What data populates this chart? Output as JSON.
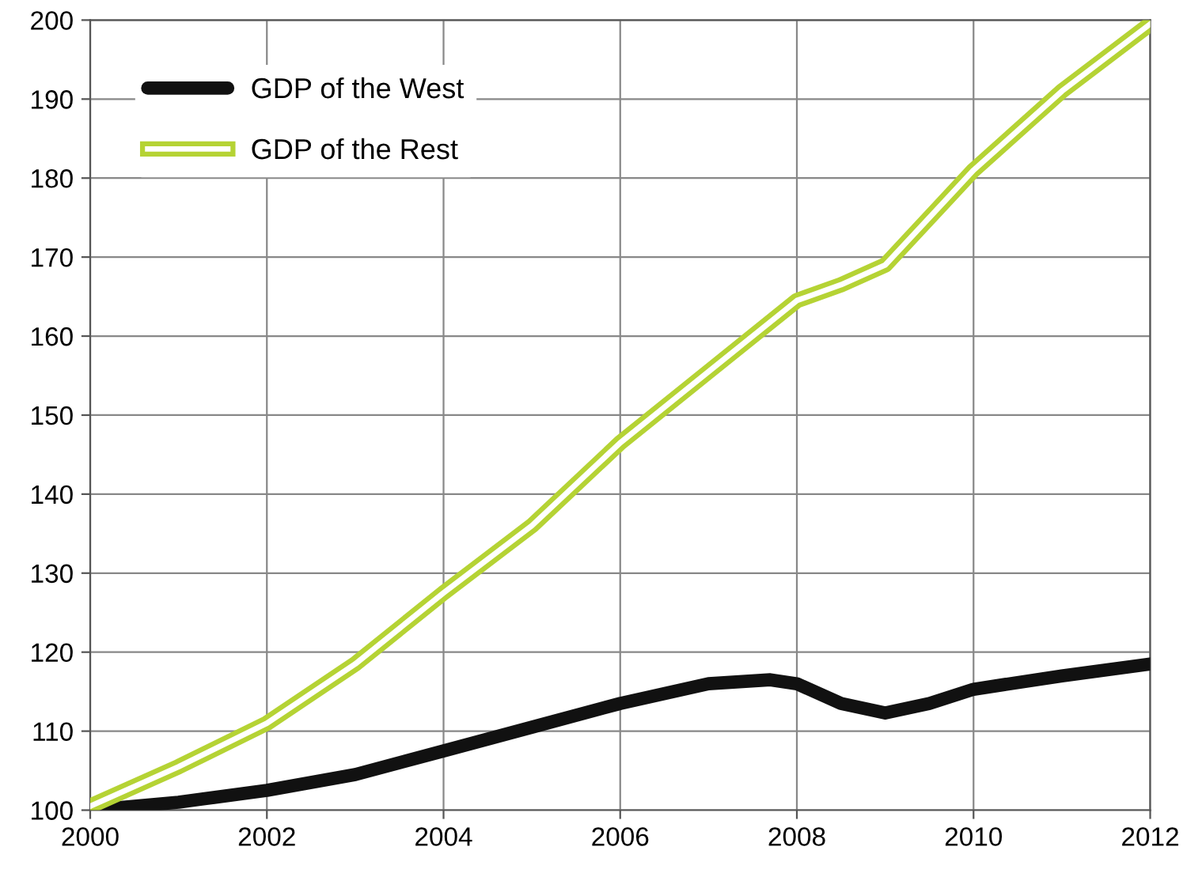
{
  "chart_data": {
    "type": "line",
    "xlim": [
      2000,
      2012
    ],
    "xticks": [
      2000,
      2002,
      2004,
      2006,
      2008,
      2010,
      2012
    ],
    "ylim": [
      100,
      200
    ],
    "yticks": [
      100,
      110,
      120,
      130,
      140,
      150,
      160,
      170,
      180,
      190,
      200
    ],
    "grid": true,
    "legend": "top left",
    "marker": "none",
    "line_style": "solid",
    "series": [
      {
        "name": "GDP of the West",
        "color": "#111111",
        "x": [
          2000,
          2001,
          2002,
          2003,
          2004,
          2005,
          2006,
          2007,
          2007.7,
          2008,
          2008.5,
          2009,
          2009.5,
          2010,
          2011,
          2012
        ],
        "values": [
          100,
          101,
          102.5,
          104.5,
          107.5,
          110.5,
          113.5,
          116,
          116.5,
          116,
          113.5,
          112.3,
          113.5,
          115.3,
          117,
          118.5
        ]
      },
      {
        "name": "GDP of the Rest",
        "color": "#b5d334",
        "x": [
          2000,
          2001,
          2002,
          2003,
          2004,
          2005,
          2006,
          2007,
          2008,
          2008.5,
          2009,
          2010,
          2011,
          2012
        ],
        "values": [
          100.5,
          105.5,
          111,
          118.5,
          127.5,
          136,
          146.5,
          155.5,
          164.5,
          166.5,
          169,
          181,
          191,
          199.5
        ]
      }
    ]
  }
}
